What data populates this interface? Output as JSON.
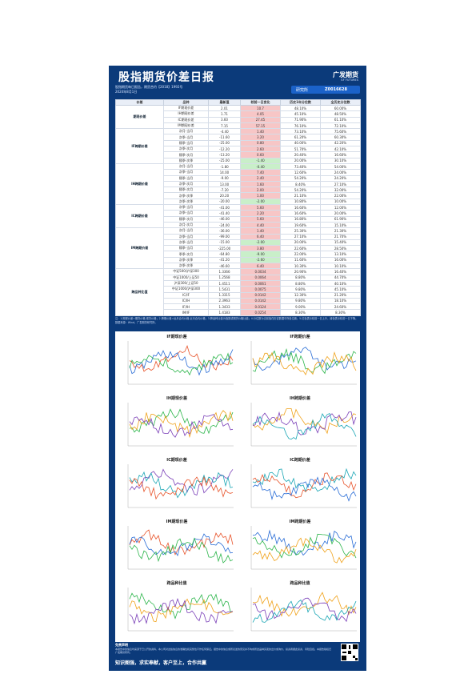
{
  "header": {
    "title": "股指期货价差日报",
    "logo": "广发期货",
    "logo_sub": "GF FUTURES",
    "meta_line1": "股指期货每日报告，期货合约【2018】1992号",
    "meta_line2": "2024年8月1日",
    "sn_label": "研究所",
    "sn_value": "Z0016628"
  },
  "table": {
    "columns": [
      "价差",
      "品种",
      "最新值",
      "较前一日变化",
      "历史1年分位数",
      "全历史分位数"
    ],
    "groups": [
      {
        "cat": "期现价差",
        "rows": [
          [
            "IF期现价差",
            "2.01",
            "10.7",
            "48.10%",
            "60.00%"
          ],
          [
            "IH期现价差",
            "1.71",
            "4.05",
            "45.10%",
            "48.50%"
          ],
          [
            "IC期现价差",
            "3.60",
            "27.45",
            "71.90%",
            "61.10%"
          ],
          [
            "IM期现价差",
            "7.15",
            "57.15",
            "76.10%",
            "72.10%"
          ]
        ]
      },
      {
        "cat": "IF跨期价差",
        "rows": [
          [
            "次月-当月",
            "-4.40",
            "1.40",
            "73.10%",
            "75.60%"
          ],
          [
            "次季-当月",
            "-11.60",
            "3.20",
            "61.20%",
            "60.30%"
          ],
          [
            "隔季-当月",
            "-25.00",
            "0.80",
            "40.00%",
            "42.20%"
          ],
          [
            "次季-次月",
            "-12.20",
            "2.60",
            "51.70%",
            "42.10%"
          ],
          [
            "隔季-次月",
            "-13.20",
            "0.60",
            "20.40%",
            "16.60%"
          ],
          [
            "隔季-次季",
            "-25.00",
            "-1.40",
            "20.00%",
            "30.10%"
          ]
        ]
      },
      {
        "cat": "IH跨期价差",
        "rows": [
          [
            "次月-当月",
            "-1.80",
            "-0.40",
            "73.40%",
            "54.00%"
          ],
          [
            "次季-当月",
            "14.00",
            "7.40",
            "12.60%",
            "24.00%"
          ],
          [
            "隔季-当月",
            "-9.00",
            "2.40",
            "54.20%",
            "24.20%"
          ],
          [
            "次季-次月",
            "13.00",
            "1.60",
            "8.40%",
            "27.10%"
          ],
          [
            "隔季-次月",
            "-7.20",
            "2.00",
            "54.20%",
            "32.00%"
          ],
          [
            "次季-次季",
            "20.20",
            "1.00",
            "21.10%",
            "22.00%"
          ],
          [
            "次季-次季",
            "-20.00",
            "-2.00",
            "10.80%",
            "10.00%"
          ]
        ]
      },
      {
        "cat": "IC跨期价差",
        "rows": [
          [
            "次季-当月",
            "-41.00",
            "5.60",
            "16.60%",
            "12.00%"
          ],
          [
            "次季-当月",
            "-41.40",
            "2.20",
            "16.60%",
            "20.00%"
          ],
          [
            "隔季-次月",
            "-46.00",
            "5.60",
            "16.80%",
            "61.90%"
          ],
          [
            "次月-次月",
            "-24.00",
            "4.40",
            "19.60%",
            "15.10%"
          ]
        ]
      },
      {
        "cat": "IM跨期价差",
        "rows": [
          [
            "次月-当月",
            "-36.00",
            "1.40",
            "25.30%",
            "21.30%"
          ],
          [
            "次季-当月",
            "-99.00",
            "6.40",
            "27.10%",
            "21.70%"
          ],
          [
            "次季-当月",
            "-15.00",
            "-2.00",
            "20.00%",
            "15.40%"
          ],
          [
            "隔季-当月",
            "-225.00",
            "3.80",
            "22.60%",
            "28.50%"
          ],
          [
            "季季-次月",
            "-64.80",
            "-9.00",
            "22.00%",
            "13.10%"
          ],
          [
            "次季-次季",
            "-41.20",
            "-2.60",
            "11.60%",
            "16.00%"
          ],
          [
            "次季-次季",
            "-46.60",
            "6.40",
            "10.30%",
            "10.10%"
          ]
        ]
      },
      {
        "cat": "跨品种比值",
        "rows": [
          [
            "中证500/沪深300",
            "1.3366",
            "0.0034",
            "20.90%",
            "16.40%"
          ],
          [
            "中证1000/上证50",
            "1.2568",
            "0.0064",
            "8.80%",
            "44.70%"
          ],
          [
            "沪深300/上证50",
            "1.4511",
            "0.0061",
            "8.80%",
            "40.10%"
          ],
          [
            "中证1000/沪深300",
            "1.5431",
            "0.0075",
            "9.80%",
            "45.10%"
          ],
          [
            "IC/IF",
            "1.3315",
            "0.0142",
            "12.30%",
            "21.20%"
          ],
          [
            "IC/IH",
            "2.3963",
            "0.0142",
            "9.80%",
            "18.10%"
          ],
          [
            "IF/IH",
            "1.3433",
            "0.0124",
            "9.00%",
            "24.60%"
          ],
          [
            "IM/IF",
            "1.4183",
            "0.0254",
            "8.30%",
            "8.30%"
          ]
        ]
      }
    ]
  },
  "note": "注：1.期现价差=期货价格-现货价格；2.跨期价差=远月合约价格-近月合约价格；3.跨品种比值为指数或期货价格比值；4.分位数为当前值在历史数据中所处位置；5.红色表示较前一日上升，绿色表示较前一日下降。数据来源：Wind，广发期货研究所。",
  "charts": [
    {
      "title": "IF期现价差"
    },
    {
      "title": "IF跨期价差"
    },
    {
      "title": "IH期现价差"
    },
    {
      "title": "IH跨期价差"
    },
    {
      "title": "IC期现价差"
    },
    {
      "title": "IC跨期价差"
    },
    {
      "title": "IM期现价差"
    },
    {
      "title": "IM跨期价差"
    },
    {
      "title": "跨品种比值"
    },
    {
      "title": "跨品种比值"
    }
  ],
  "footer": {
    "heading": "免责声明",
    "text": "本报告中的信息均来源于已公开的资料，本公司对这些信息的准确性和完整性不作任何保证。报告中的信息或所表述的意见并不构成所述品种买卖的出价或询价，投资者据此投资，风险自担。本报告版权归广发期货所有。",
    "slogan": "知识图强，求实奉献，客户至上，合作共赢",
    "qr_label": "qr-code"
  },
  "colors": {
    "sheet": "#0b3a7a",
    "red": "#f7c6c6",
    "green": "#c9efc9"
  }
}
